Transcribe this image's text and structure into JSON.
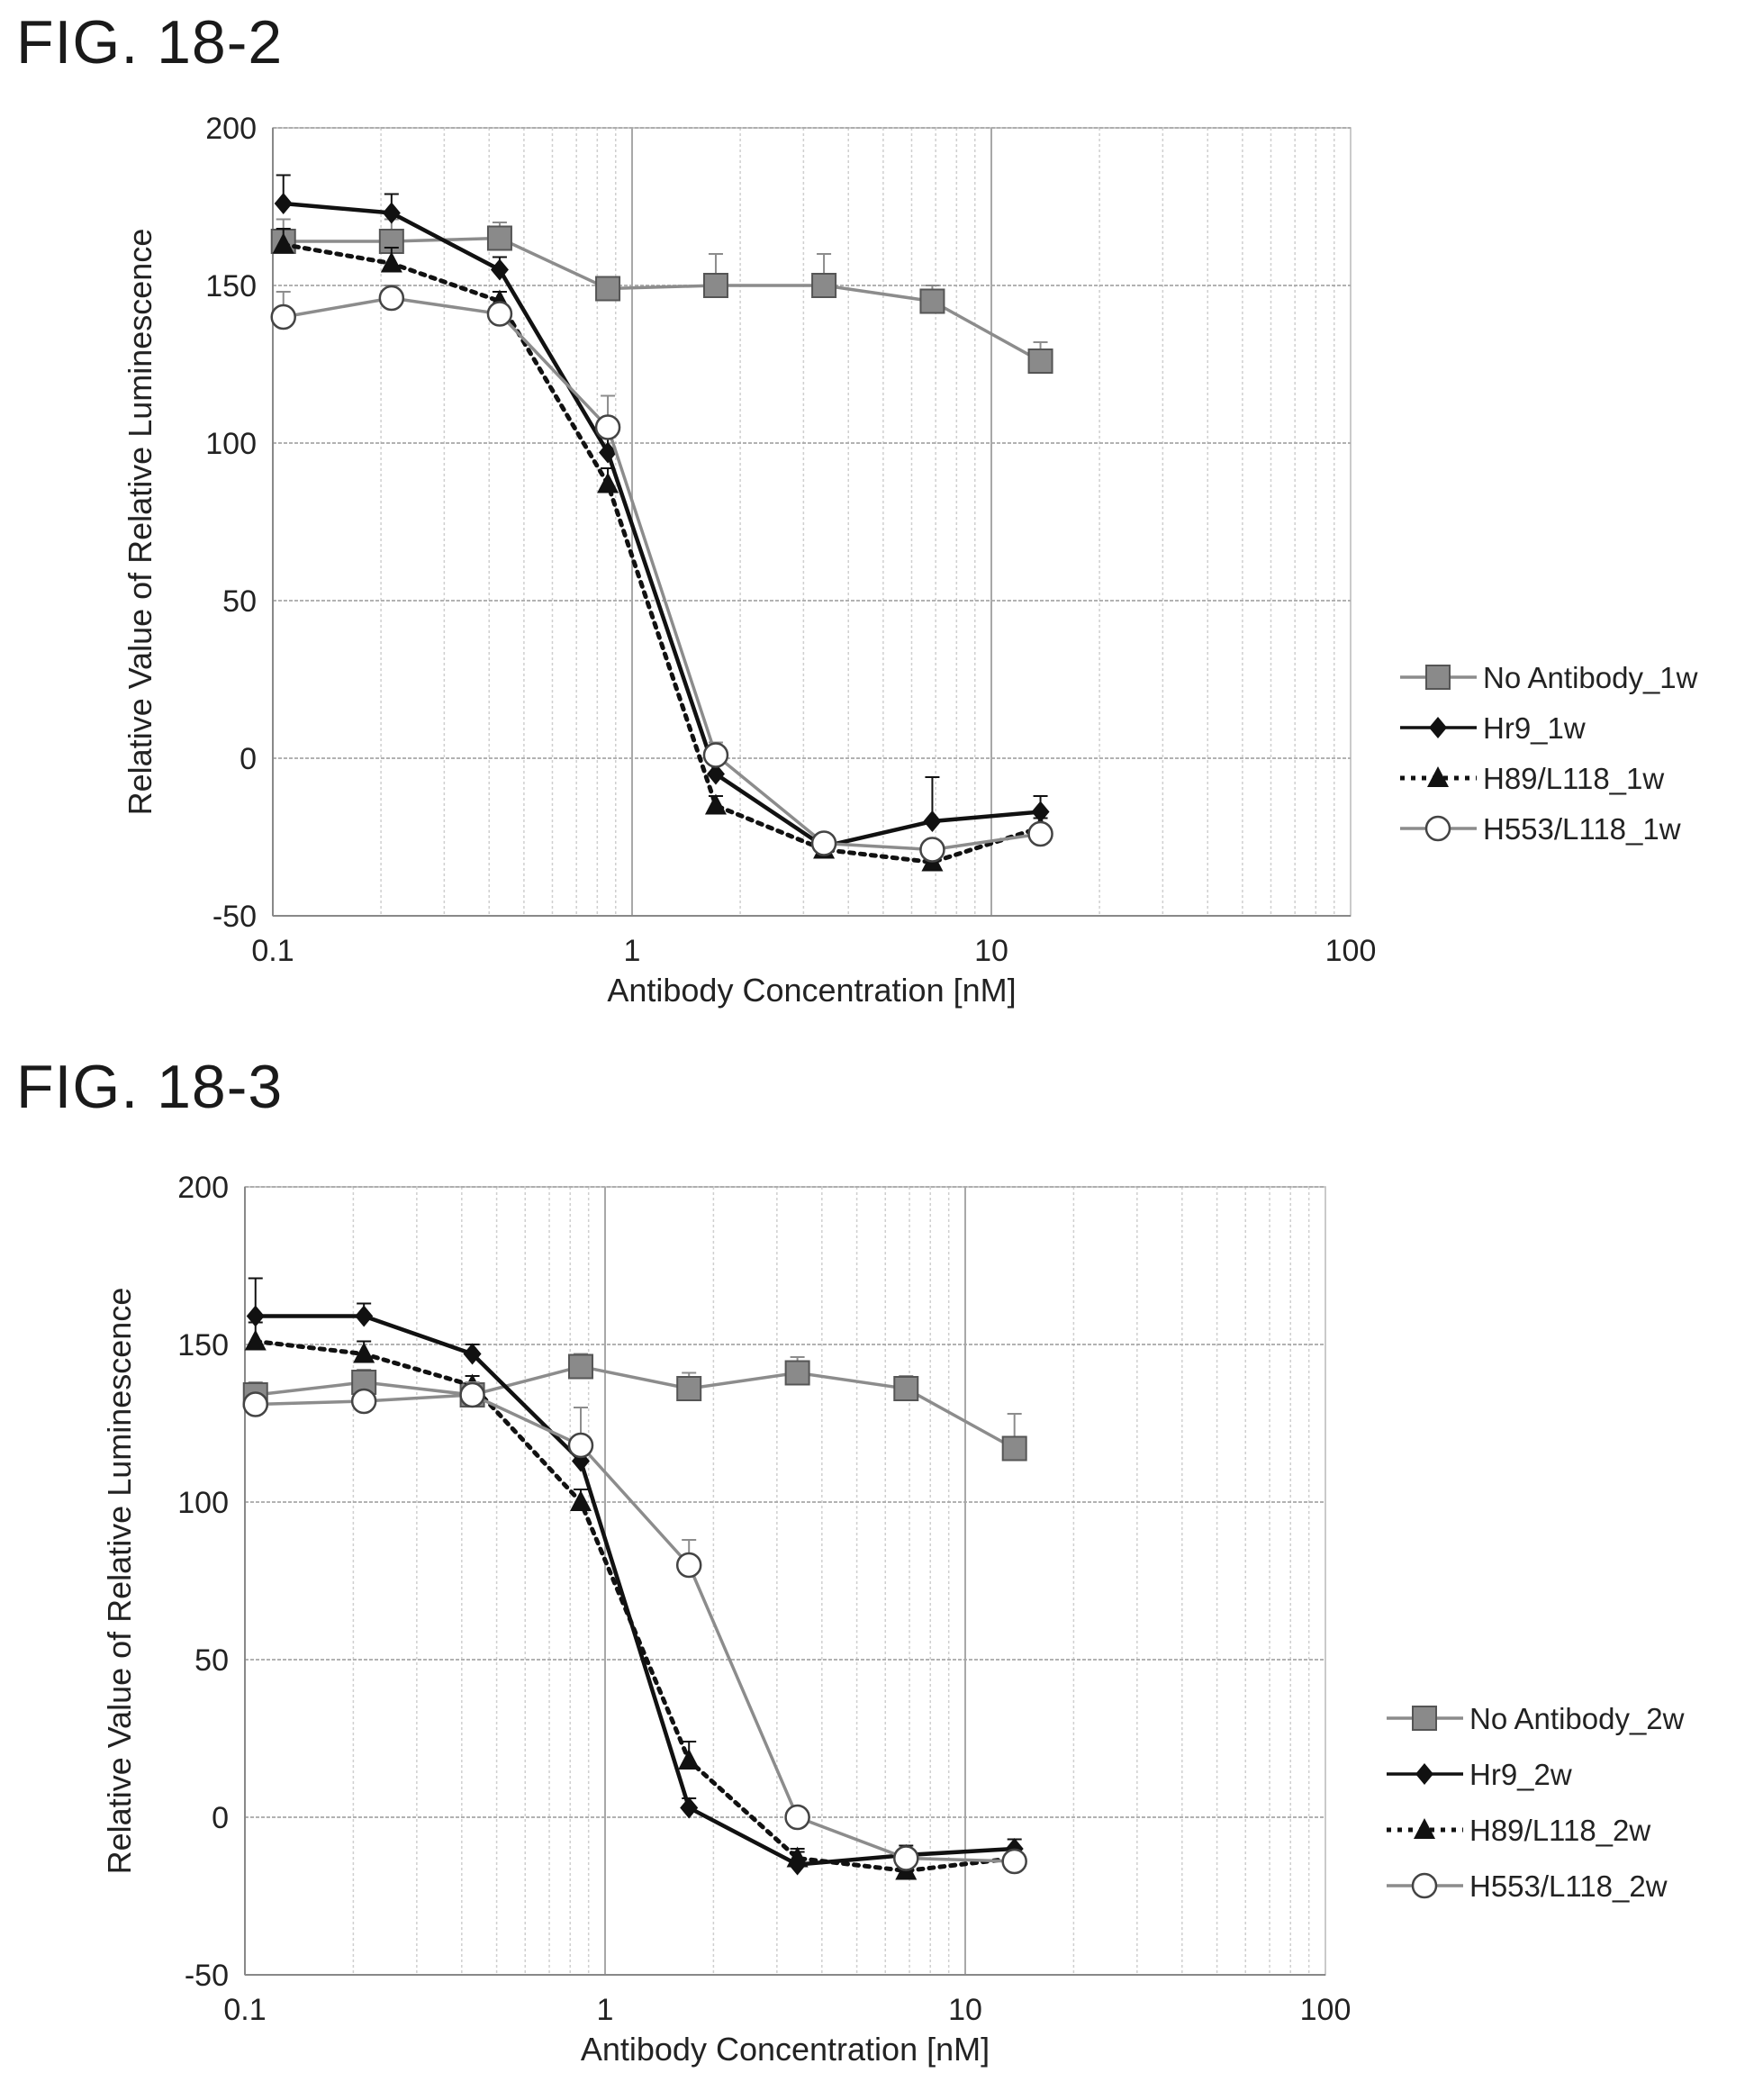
{
  "figures": [
    {
      "title": "FIG. 18-2"
    },
    {
      "title": "FIG. 18-3"
    }
  ],
  "chart_data": [
    {
      "type": "line",
      "title": "",
      "xlabel": "Antibody Concentration [nM]",
      "ylabel": "Relative Value of Relative Luminescence",
      "xscale": "log",
      "xlim": [
        0.1,
        100
      ],
      "ylim": [
        -50,
        200
      ],
      "xticks": [
        "0.1",
        "1",
        "10",
        "100"
      ],
      "yticks": [
        "-50",
        "0",
        "50",
        "100",
        "150",
        "200"
      ],
      "grid": true,
      "legend_position": "right",
      "x": [
        0.107,
        0.214,
        0.428,
        0.856,
        1.71,
        3.42,
        6.85,
        13.7
      ],
      "series": [
        {
          "name": "No Antibody_1w",
          "color": "#8c8c8c",
          "marker": "square",
          "line": "solid",
          "values": [
            164,
            164,
            165,
            149,
            150,
            150,
            145,
            126
          ],
          "errors": [
            7,
            7,
            5,
            3,
            10,
            10,
            5,
            6
          ]
        },
        {
          "name": "Hr9_1w",
          "color": "#111111",
          "marker": "diamond",
          "line": "solid",
          "values": [
            176,
            173,
            155,
            97,
            -5,
            -28,
            -20,
            -17
          ],
          "errors": [
            9,
            6,
            4,
            5,
            3,
            4,
            14,
            5
          ]
        },
        {
          "name": "H89/L118_1w",
          "color": "#111111",
          "marker": "triangle",
          "line": "dotted",
          "values": [
            163,
            157,
            145,
            87,
            -15,
            -29,
            -33,
            -22
          ],
          "errors": [
            5,
            5,
            3,
            5,
            3,
            3,
            3,
            3
          ]
        },
        {
          "name": "H553/L118_1w",
          "color": "#8c8c8c",
          "marker": "circle",
          "line": "solid",
          "values": [
            140,
            146,
            141,
            105,
            1,
            -27,
            -29,
            -24
          ],
          "errors": [
            8,
            4,
            3,
            10,
            4,
            3,
            3,
            3
          ]
        }
      ]
    },
    {
      "type": "line",
      "title": "",
      "xlabel": "Antibody Concentration [nM]",
      "ylabel": "Relative Value of Relative Luminescence",
      "xscale": "log",
      "xlim": [
        0.1,
        100
      ],
      "ylim": [
        -50,
        200
      ],
      "xticks": [
        "0.1",
        "1",
        "10",
        "100"
      ],
      "yticks": [
        "-50",
        "0",
        "50",
        "100",
        "150",
        "200"
      ],
      "grid": true,
      "legend_position": "right",
      "x": [
        0.107,
        0.214,
        0.428,
        0.856,
        1.71,
        3.42,
        6.85,
        13.7
      ],
      "series": [
        {
          "name": "No Antibody_2w",
          "color": "#8c8c8c",
          "marker": "square",
          "line": "solid",
          "values": [
            134,
            138,
            134,
            143,
            136,
            141,
            136,
            117
          ],
          "errors": [
            4,
            4,
            4,
            4,
            5,
            5,
            4,
            11
          ]
        },
        {
          "name": "Hr9_2w",
          "color": "#111111",
          "marker": "diamond",
          "line": "solid",
          "values": [
            159,
            159,
            147,
            113,
            3,
            -15,
            -12,
            -10
          ],
          "errors": [
            12,
            4,
            3,
            4,
            3,
            4,
            3,
            3
          ]
        },
        {
          "name": "H89/L118_2w",
          "color": "#111111",
          "marker": "triangle",
          "line": "dotted",
          "values": [
            151,
            147,
            137,
            100,
            18,
            -13,
            -17,
            -13
          ],
          "errors": [
            6,
            4,
            3,
            4,
            6,
            3,
            3,
            3
          ]
        },
        {
          "name": "H553/L118_2w",
          "color": "#8c8c8c",
          "marker": "circle",
          "line": "solid",
          "values": [
            131,
            132,
            134,
            118,
            80,
            0,
            -13,
            -14
          ],
          "errors": [
            4,
            4,
            4,
            12,
            8,
            3,
            3,
            3
          ]
        }
      ]
    }
  ]
}
